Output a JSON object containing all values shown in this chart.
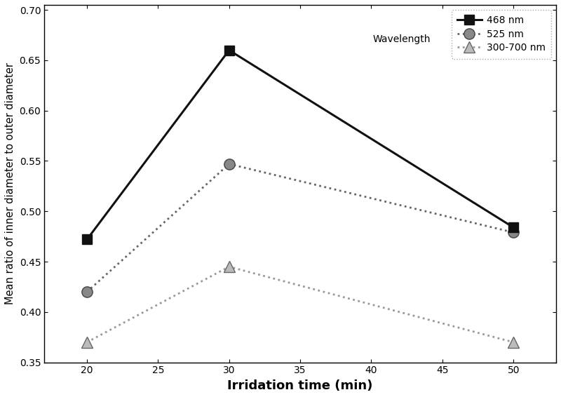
{
  "x": [
    20,
    30,
    50
  ],
  "series": [
    {
      "label": "468 nm",
      "y": [
        0.472,
        0.66,
        0.484
      ],
      "color": "#111111",
      "linestyle": "-",
      "linewidth": 2.2,
      "marker": "s",
      "markersize": 10,
      "markerfacecolor": "#111111",
      "markeredgecolor": "#111111",
      "zorder": 3
    },
    {
      "label": "525 nm",
      "y": [
        0.42,
        0.547,
        0.479
      ],
      "color": "#666666",
      "linestyle": "dotted",
      "linewidth": 2.0,
      "marker": "o",
      "markersize": 11,
      "markerfacecolor": "#888888",
      "markeredgecolor": "#444444",
      "zorder": 2
    },
    {
      "label": "300-700 nm",
      "y": [
        0.37,
        0.445,
        0.37
      ],
      "color": "#999999",
      "linestyle": "dotted",
      "linewidth": 2.0,
      "marker": "^",
      "markersize": 11,
      "markerfacecolor": "#bbbbbb",
      "markeredgecolor": "#666666",
      "zorder": 1
    }
  ],
  "xlabel": "Irridation time (min)",
  "ylabel": "Mean ratio of inner diameter to outer diameter",
  "xlim": [
    17,
    53
  ],
  "ylim": [
    0.35,
    0.705
  ],
  "xticks": [
    20,
    25,
    30,
    35,
    40,
    45,
    50
  ],
  "yticks": [
    0.35,
    0.4,
    0.45,
    0.5,
    0.55,
    0.6,
    0.65,
    0.7
  ],
  "legend_wavelength_label": "Wavelength",
  "legend_fontsize": 10,
  "xlabel_fontsize": 13,
  "ylabel_fontsize": 10.5,
  "tick_fontsize": 10,
  "figsize": [
    8.0,
    5.66
  ],
  "dpi": 100
}
